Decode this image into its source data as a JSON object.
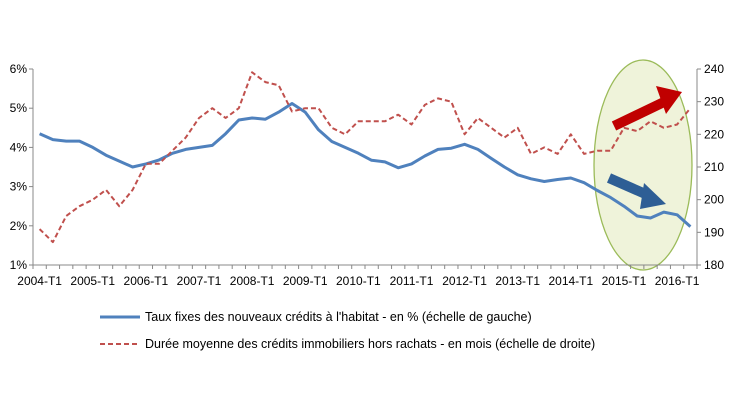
{
  "chart_data": {
    "type": "line",
    "title": "",
    "xlabel": "",
    "ylabel_left": "",
    "ylabel_right": "",
    "x_tick_labels": [
      "2004-T1",
      "2005-T1",
      "2006-T1",
      "2007-T1",
      "2008-T1",
      "2009-T1",
      "2010-T1",
      "2011-T1",
      "2012-T1",
      "2013-T1",
      "2014-T1",
      "2015-T1",
      "2016-T1"
    ],
    "y_left": {
      "min": 1,
      "max": 6,
      "ticks": [
        "1%",
        "2%",
        "3%",
        "4%",
        "5%",
        "6%"
      ]
    },
    "y_right": {
      "min": 180,
      "max": 240,
      "ticks": [
        "180",
        "190",
        "200",
        "210",
        "220",
        "230",
        "240"
      ]
    },
    "grid": false,
    "legend_position": "bottom",
    "series": [
      {
        "name": "Taux fixes des nouveaux crédits à l'habitat - en % (échelle de gauche)",
        "axis": "left",
        "style": "solid",
        "color": "#4F81BD",
        "x_start": "2004-T1",
        "frequency": "quarterly",
        "values": [
          4.35,
          4.2,
          4.16,
          4.16,
          4.0,
          3.8,
          3.65,
          3.5,
          3.58,
          3.68,
          3.85,
          3.95,
          4.0,
          4.05,
          4.35,
          4.7,
          4.75,
          4.72,
          4.9,
          5.12,
          4.9,
          4.45,
          4.15,
          4.0,
          3.85,
          3.67,
          3.63,
          3.48,
          3.58,
          3.78,
          3.95,
          3.98,
          4.08,
          3.95,
          3.72,
          3.5,
          3.3,
          3.2,
          3.13,
          3.18,
          3.22,
          3.1,
          2.9,
          2.72,
          2.5,
          2.25,
          2.2,
          2.35,
          2.28,
          1.98
        ]
      },
      {
        "name": "Durée moyenne des crédits immobiliers hors rachats  - en mois (échelle de droite)",
        "axis": "right",
        "style": "dashed",
        "color": "#C0504D",
        "x_start": "2004-T1",
        "frequency": "quarterly",
        "values": [
          191,
          187,
          195,
          198,
          200,
          203,
          198,
          203,
          211,
          211,
          215,
          219,
          225,
          228,
          225,
          228,
          239,
          236,
          235,
          227,
          228,
          228,
          222,
          220,
          224,
          224,
          224,
          226,
          223,
          229,
          231,
          230,
          220,
          225,
          222,
          219,
          222,
          214,
          216,
          214,
          220,
          214,
          215,
          215,
          222,
          221,
          224,
          222,
          223,
          228
        ]
      }
    ],
    "annotations": [
      {
        "type": "ellipse-highlight",
        "label": "",
        "color": "#EEF2D8",
        "border": "#9BBB59"
      },
      {
        "type": "arrow-up",
        "color": "#C00000"
      },
      {
        "type": "arrow-down",
        "color": "#2E5E95"
      }
    ]
  }
}
